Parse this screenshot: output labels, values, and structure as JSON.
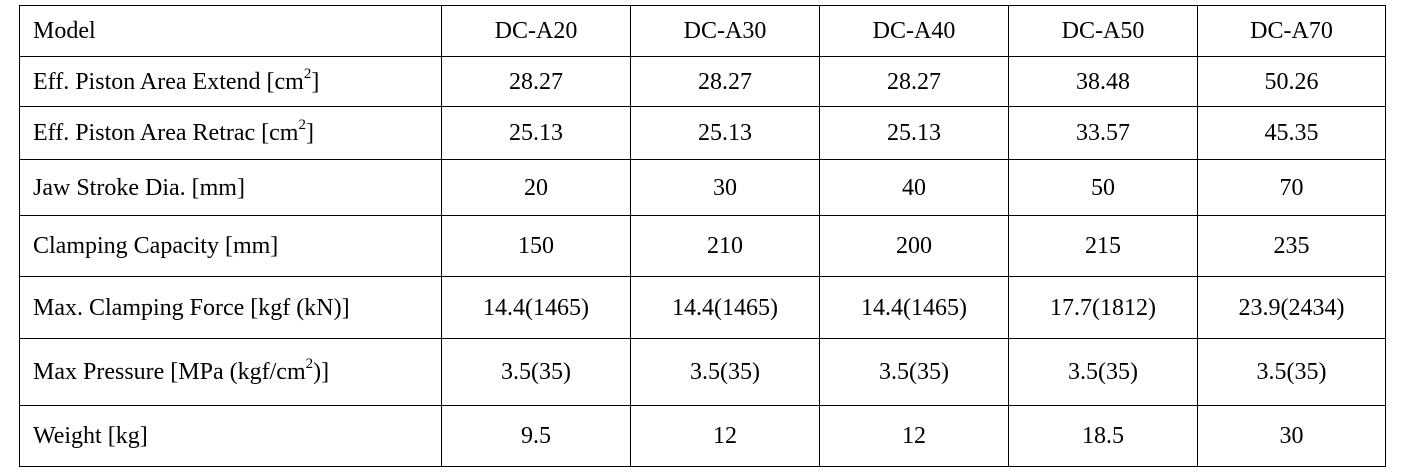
{
  "table": {
    "header": {
      "label": "Model",
      "models": [
        "DC-A20",
        "DC-A30",
        "DC-A40",
        "DC-A50",
        "DC-A70"
      ]
    },
    "rows": [
      {
        "label_pre": "Eff. Piston Area Extend [cm",
        "label_sup": "2",
        "label_post": "]",
        "values": [
          "28.27",
          "28.27",
          "28.27",
          "38.48",
          "50.26"
        ]
      },
      {
        "label_pre": "Eff. Piston Area Retrac [cm",
        "label_sup": "2",
        "label_post": "]",
        "values": [
          "25.13",
          "25.13",
          "25.13",
          "33.57",
          "45.35"
        ]
      },
      {
        "label_pre": "Jaw Stroke Dia. [mm]",
        "values": [
          "20",
          "30",
          "40",
          "50",
          "70"
        ]
      },
      {
        "label_pre": "Clamping Capacity [mm]",
        "values": [
          "150",
          "210",
          "200",
          "215",
          "235"
        ]
      },
      {
        "label_pre": "Max. Clamping Force [kgf (kN)]",
        "values": [
          "14.4(1465)",
          "14.4(1465)",
          "14.4(1465)",
          "17.7(1812)",
          "23.9(2434)"
        ]
      },
      {
        "label_pre": "Max Pressure [MPa (kgf/cm",
        "label_sup": "2",
        "label_post": ")]",
        "values": [
          "3.5(35)",
          "3.5(35)",
          "3.5(35)",
          "3.5(35)",
          "3.5(35)"
        ]
      },
      {
        "label_pre": "Weight [kg]",
        "values": [
          "9.5",
          "12",
          "12",
          "18.5",
          "30"
        ]
      }
    ]
  }
}
